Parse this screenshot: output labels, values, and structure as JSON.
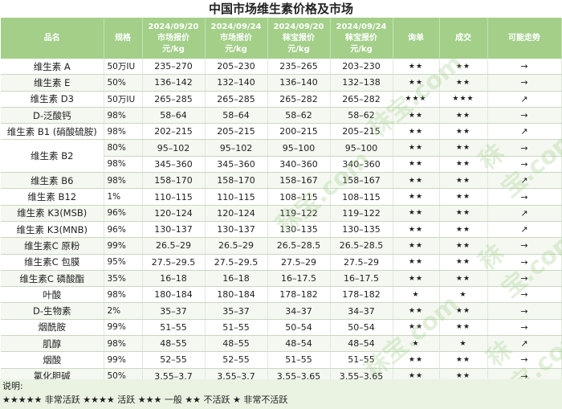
{
  "title": "中国市场维生素价格及市场",
  "headers": {
    "name": "品名",
    "spec": "规格",
    "col1": [
      "2024/09/20",
      "市场报价",
      "元/kg"
    ],
    "col2": [
      "2024/09/24",
      "市场报价",
      "元/kg"
    ],
    "col3": [
      "2024/09/20",
      "秣宝报价",
      "元/kg"
    ],
    "col4": [
      "2024/09/24",
      "秣宝报价",
      "元/kg"
    ],
    "inquiry": "询单",
    "deal": "成交",
    "trend": "可能走势"
  },
  "rows": [
    {
      "name": "维生素 A",
      "spec": "50万IU",
      "p1": "235–270",
      "p2": "205–230",
      "p3": "235–265",
      "p4": "203–230",
      "inquiry": "★★",
      "deal": "★★",
      "trend": "→"
    },
    {
      "name": "维生素 E",
      "spec": "50%",
      "p1": "136–142",
      "p2": "132–140",
      "p3": "136–140",
      "p4": "132–138",
      "inquiry": "★★",
      "deal": "★★",
      "trend": "→"
    },
    {
      "name": "维生素 D3",
      "spec": "50万IU",
      "p1": "265–285",
      "p2": "265–285",
      "p3": "265–282",
      "p4": "265–282",
      "inquiry": "★★★",
      "deal": "★★★",
      "trend": "↗"
    },
    {
      "name": "D-泛酸钙",
      "spec": "98%",
      "p1": "58–64",
      "p2": "58–64",
      "p3": "58–62",
      "p4": "58–62",
      "inquiry": "★★",
      "deal": "★★",
      "trend": "→"
    },
    {
      "name": "维生素 B1 (硝酸硫胺)",
      "spec": "98%",
      "p1": "202–215",
      "p2": "205–215",
      "p3": "200–215",
      "p4": "205–215",
      "inquiry": "★★",
      "deal": "★★",
      "trend": "↗"
    },
    {
      "name": "维生素 B2",
      "spec": "80%",
      "p1": "95–102",
      "p2": "95–102",
      "p3": "95–100",
      "p4": "95–100",
      "inquiry": "★★",
      "deal": "★★",
      "trend": "→"
    },
    {
      "name": "",
      "spec": "98%",
      "p1": "345–360",
      "p2": "345–360",
      "p3": "340–360",
      "p4": "340–360",
      "inquiry": "★★",
      "deal": "★★",
      "trend": "→"
    },
    {
      "name": "维生素 B6",
      "spec": "98%",
      "p1": "158–170",
      "p2": "158–170",
      "p3": "158–167",
      "p4": "158–167",
      "inquiry": "★★",
      "deal": "★★",
      "trend": "↗"
    },
    {
      "name": "维生素 B12",
      "spec": "1%",
      "p1": "110–115",
      "p2": "110–115",
      "p3": "108–115",
      "p4": "108–115",
      "inquiry": "★★",
      "deal": "★★",
      "trend": "→"
    },
    {
      "name": "维生素 K3(MSB)",
      "spec": "96%",
      "p1": "120–124",
      "p2": "120–124",
      "p3": "119–122",
      "p4": "119–122",
      "inquiry": "★★",
      "deal": "★★",
      "trend": "↗"
    },
    {
      "name": "维生素 K3(MNB)",
      "spec": "96%",
      "p1": "130–137",
      "p2": "130–137",
      "p3": "130–135",
      "p4": "130–135",
      "inquiry": "★★",
      "deal": "★★",
      "trend": "↗"
    },
    {
      "name": "维生素C 原粉",
      "spec": "99%",
      "p1": "26.5–29",
      "p2": "26.5–29",
      "p3": "26.5–28.5",
      "p4": "26.5–28.5",
      "inquiry": "★★",
      "deal": "★★",
      "trend": "→"
    },
    {
      "name": "维生素C 包膜",
      "spec": "95%",
      "p1": "27.5–29.5",
      "p2": "27.5–29.5",
      "p3": "27.5–29",
      "p4": "27.5–29",
      "inquiry": "★★",
      "deal": "★★",
      "trend": "→"
    },
    {
      "name": "维生素C 磷酸酯",
      "spec": "35%",
      "p1": "16–18",
      "p2": "16–18",
      "p3": "16–17.5",
      "p4": "16–17.5",
      "inquiry": "★★",
      "deal": "★★",
      "trend": "→"
    },
    {
      "name": "叶酸",
      "spec": "98%",
      "p1": "180–184",
      "p2": "180–184",
      "p3": "178–182",
      "p4": "178–182",
      "inquiry": "★",
      "deal": "★",
      "trend": "→"
    },
    {
      "name": "D-生物素",
      "spec": "2%",
      "p1": "35–37",
      "p2": "35–37",
      "p3": "34–37",
      "p4": "34–37",
      "inquiry": "★★",
      "deal": "★★",
      "trend": "→"
    },
    {
      "name": "烟酰胺",
      "spec": "99%",
      "p1": "51–55",
      "p2": "51–55",
      "p3": "50–54",
      "p4": "50–54",
      "inquiry": "★★",
      "deal": "★★",
      "trend": "→"
    },
    {
      "name": "肌醇",
      "spec": "98%",
      "p1": "48–55",
      "p2": "48–55",
      "p3": "48–54",
      "p4": "48–54",
      "inquiry": "★",
      "deal": "★",
      "trend": "↗"
    },
    {
      "name": "烟酸",
      "spec": "99%",
      "p1": "52–55",
      "p2": "52–55",
      "p3": "51–55",
      "p4": "51–55",
      "inquiry": "★★",
      "deal": "★★",
      "trend": "→"
    },
    {
      "name": "氯化胆碱",
      "spec": "50%",
      "p1": "3.55–3.7",
      "p2": "3.55–3.7",
      "p3": "3.55–3.65",
      "p4": "3.55–3.65",
      "inquiry": "★★",
      "deal": "★★",
      "trend": "→"
    }
  ],
  "legend": {
    "label": "说明:",
    "text": "★★★★★ 非常活跃 ★★★★ 活跃 ★★★ 一般 ★★ 不活跃 ★ 非常不活跃"
  },
  "watermark": "秣宝.com"
}
